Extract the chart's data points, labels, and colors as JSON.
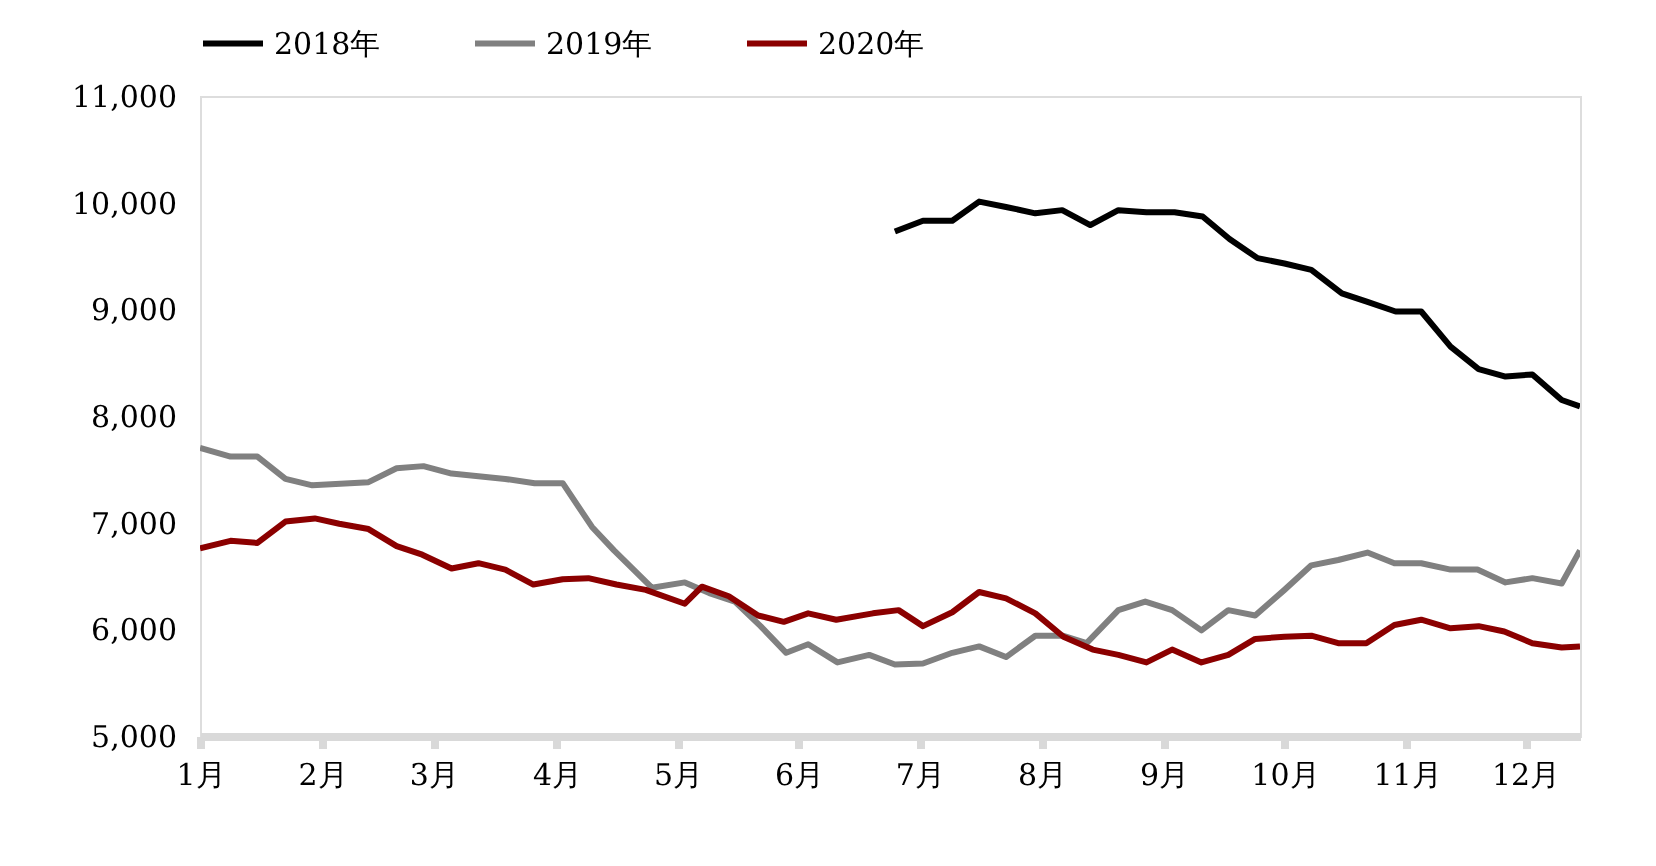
{
  "chart_data": {
    "type": "line",
    "xlim": [
      1,
      12.3
    ],
    "ylim": [
      5000,
      11000
    ],
    "xticks": [
      {
        "value": 1,
        "label": "1月"
      },
      {
        "value": 2.0,
        "label": "2月"
      },
      {
        "value": 2.91,
        "label": "3月"
      },
      {
        "value": 3.92,
        "label": "4月"
      },
      {
        "value": 4.91,
        "label": "5月"
      },
      {
        "value": 5.9,
        "label": "6月"
      },
      {
        "value": 6.89,
        "label": "7月"
      },
      {
        "value": 7.89,
        "label": "8月"
      },
      {
        "value": 8.89,
        "label": "9月"
      },
      {
        "value": 9.88,
        "label": "10月"
      },
      {
        "value": 10.88,
        "label": "11月"
      },
      {
        "value": 11.85,
        "label": "12月"
      }
    ],
    "yticks": [
      {
        "value": 5000,
        "label": "5,000"
      },
      {
        "value": 6000,
        "label": "6,000"
      },
      {
        "value": 7000,
        "label": "7,000"
      },
      {
        "value": 8000,
        "label": "8,000"
      },
      {
        "value": 9000,
        "label": "9,000"
      },
      {
        "value": 10000,
        "label": "10,000"
      },
      {
        "value": 11000,
        "label": "11,000"
      }
    ],
    "grid": false,
    "legend": "top",
    "marker": "none",
    "line_style": "solid",
    "series": [
      {
        "name": "2018年",
        "color": "#000000",
        "x": [
          6.69,
          6.92,
          7.16,
          7.38,
          7.6,
          7.84,
          8.06,
          8.29,
          8.52,
          8.75,
          8.98,
          9.21,
          9.43,
          9.66,
          9.88,
          10.1,
          10.35,
          10.56,
          10.79,
          11.0,
          11.24,
          11.47,
          11.69,
          11.91,
          12.15,
          12.3
        ],
        "values": [
          9730,
          9830,
          9830,
          10010,
          9960,
          9900,
          9930,
          9790,
          9930,
          9910,
          9910,
          9870,
          9660,
          9480,
          9430,
          9370,
          9150,
          9070,
          8980,
          8980,
          8650,
          8440,
          8370,
          8390,
          8150,
          8090
        ]
      },
      {
        "name": "2019年",
        "color": "#808080",
        "x": [
          1.0,
          1.25,
          1.47,
          1.7,
          1.92,
          2.38,
          2.61,
          2.83,
          3.06,
          3.5,
          3.74,
          3.97,
          4.21,
          4.39,
          4.7,
          4.97,
          5.17,
          5.38,
          5.59,
          5.8,
          5.98,
          6.22,
          6.48,
          6.69,
          6.92,
          7.16,
          7.38,
          7.6,
          7.84,
          8.07,
          8.26,
          8.52,
          8.74,
          8.96,
          9.2,
          9.42,
          9.64,
          9.88,
          10.1,
          10.32,
          10.56,
          10.78,
          11.0,
          11.24,
          11.46,
          11.69,
          11.91,
          12.15,
          12.3
        ],
        "values": [
          7700,
          7620,
          7620,
          7410,
          7350,
          7380,
          7510,
          7530,
          7460,
          7410,
          7370,
          7370,
          6960,
          6740,
          6390,
          6440,
          6340,
          6260,
          6030,
          5780,
          5860,
          5690,
          5760,
          5670,
          5680,
          5780,
          5840,
          5740,
          5940,
          5940,
          5870,
          6180,
          6260,
          6180,
          5990,
          6180,
          6130,
          6370,
          6600,
          6650,
          6720,
          6620,
          6620,
          6560,
          6560,
          6440,
          6480,
          6430,
          6740
        ]
      },
      {
        "name": "2020年",
        "color": "#8b0000",
        "x": [
          1.0,
          1.25,
          1.47,
          1.7,
          1.94,
          2.14,
          2.38,
          2.61,
          2.82,
          3.06,
          3.28,
          3.5,
          3.73,
          3.97,
          4.18,
          4.41,
          4.65,
          4.97,
          5.11,
          5.33,
          5.57,
          5.78,
          5.98,
          6.21,
          6.51,
          6.72,
          6.92,
          7.16,
          7.38,
          7.6,
          7.84,
          8.07,
          8.31,
          8.52,
          8.75,
          8.96,
          9.2,
          9.42,
          9.64,
          9.88,
          10.1,
          10.32,
          10.55,
          10.78,
          11.0,
          11.24,
          11.47,
          11.68,
          11.91,
          12.15,
          12.3
        ],
        "values": [
          6760,
          6830,
          6810,
          7010,
          7040,
          6990,
          6940,
          6780,
          6700,
          6570,
          6620,
          6560,
          6420,
          6470,
          6480,
          6420,
          6370,
          6240,
          6400,
          6310,
          6130,
          6070,
          6150,
          6090,
          6150,
          6180,
          6030,
          6160,
          6350,
          6290,
          6150,
          5930,
          5810,
          5760,
          5690,
          5810,
          5690,
          5760,
          5910,
          5930,
          5940,
          5870,
          5870,
          6040,
          6090,
          6010,
          6030,
          5980,
          5870,
          5830,
          5840
        ]
      }
    ]
  }
}
